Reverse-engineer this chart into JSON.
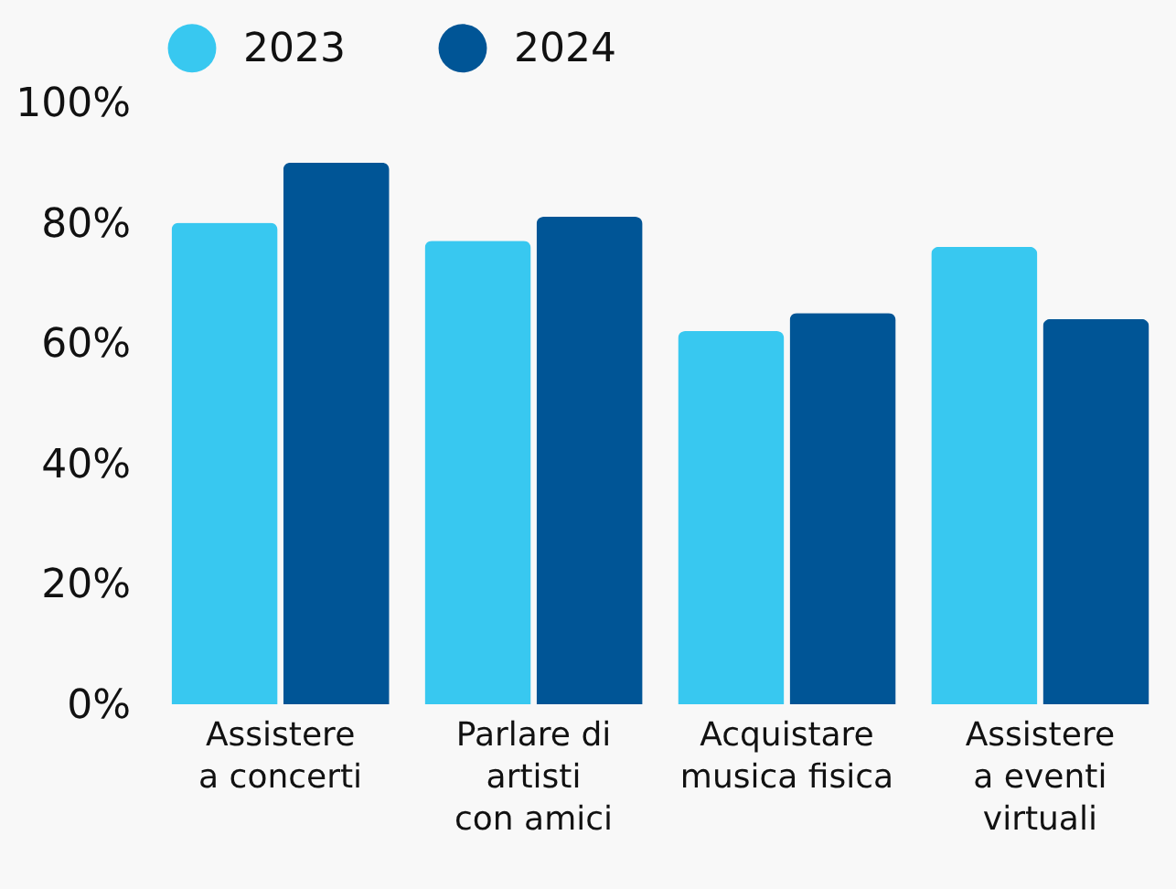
{
  "chart_data": {
    "type": "bar",
    "categories": [
      "Assistere a concerti",
      "Parlare di artisti con amici",
      "Acquistare musica fisica",
      "Assistere a eventi virtuali"
    ],
    "series": [
      {
        "name": "2023",
        "color": "#38c8f0",
        "values": [
          80,
          77,
          62,
          76
        ]
      },
      {
        "name": "2024",
        "color": "#005596",
        "values": [
          90,
          81,
          65,
          64
        ]
      }
    ],
    "ylim": [
      0,
      100
    ],
    "yticks": [
      {
        "value": 0,
        "label": "0%"
      },
      {
        "value": 20,
        "label": "20%"
      },
      {
        "value": 40,
        "label": "40%"
      },
      {
        "value": 60,
        "label": "60%"
      },
      {
        "value": 80,
        "label": "80%"
      },
      {
        "value": 100,
        "label": "100%"
      }
    ],
    "grid": false,
    "legend": "top"
  }
}
